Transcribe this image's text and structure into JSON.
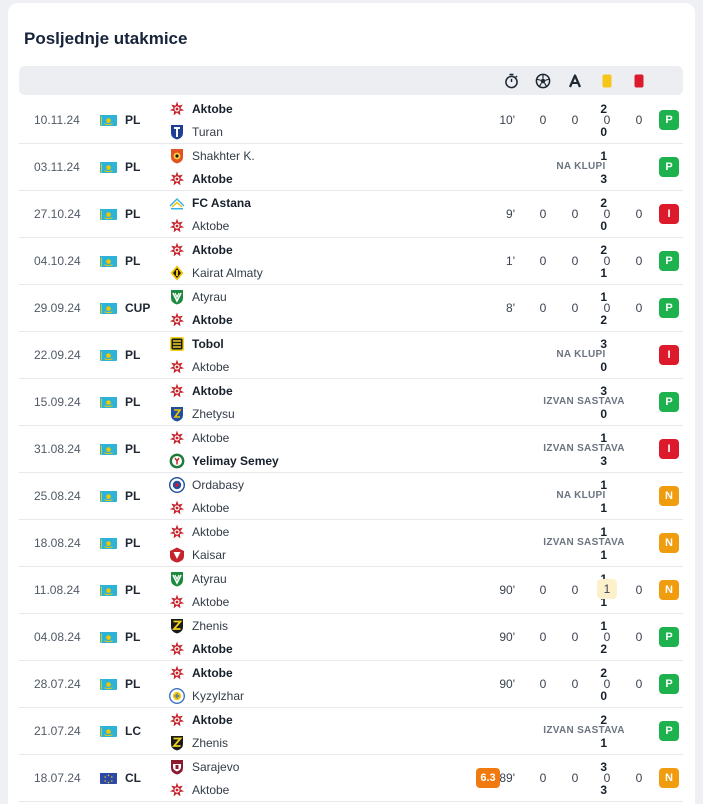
{
  "title": "Posljednje utakmice",
  "header_icons": [
    "stopwatch-icon",
    "soccer-ball-icon",
    "assist-icon",
    "yellow-card-icon",
    "red-card-icon"
  ],
  "colors": {
    "win": "#1db24d",
    "loss": "#dd1a2b",
    "draw": "#f09c0f",
    "rating": "#f07a0f",
    "yellow_card": "#f5c518",
    "red_card": "#dd1a2b"
  },
  "matches": [
    {
      "date": "10.11.24",
      "competition": "PL",
      "flag": "kazakhstan",
      "home": "Aktobe",
      "away": "Turan",
      "home_score": "2",
      "away_score": "0",
      "winner": "home",
      "minutes": "10'",
      "goals": "0",
      "assists": "0",
      "yellow": "0",
      "red": "0",
      "note": "",
      "rating": "",
      "result": "P"
    },
    {
      "date": "03.11.24",
      "competition": "PL",
      "flag": "kazakhstan",
      "home": "Shakhter K.",
      "away": "Aktobe",
      "home_score": "1",
      "away_score": "3",
      "winner": "away",
      "minutes": "",
      "goals": "",
      "assists": "",
      "yellow": "",
      "red": "",
      "note": "NA KLUPI",
      "rating": "",
      "result": "P"
    },
    {
      "date": "27.10.24",
      "competition": "PL",
      "flag": "kazakhstan",
      "home": "FC Astana",
      "away": "Aktobe",
      "home_score": "2",
      "away_score": "0",
      "winner": "home",
      "minutes": "9'",
      "goals": "0",
      "assists": "0",
      "yellow": "0",
      "red": "0",
      "note": "",
      "rating": "",
      "result": "I"
    },
    {
      "date": "04.10.24",
      "competition": "PL",
      "flag": "kazakhstan",
      "home": "Aktobe",
      "away": "Kairat Almaty",
      "home_score": "2",
      "away_score": "1",
      "winner": "home",
      "minutes": "1'",
      "goals": "0",
      "assists": "0",
      "yellow": "0",
      "red": "0",
      "note": "",
      "rating": "",
      "result": "P"
    },
    {
      "date": "29.09.24",
      "competition": "CUP",
      "flag": "kazakhstan",
      "home": "Atyrau",
      "away": "Aktobe",
      "home_score": "1",
      "away_score": "2",
      "winner": "away",
      "minutes": "8'",
      "goals": "0",
      "assists": "0",
      "yellow": "0",
      "red": "0",
      "note": "",
      "rating": "",
      "result": "P"
    },
    {
      "date": "22.09.24",
      "competition": "PL",
      "flag": "kazakhstan",
      "home": "Tobol",
      "away": "Aktobe",
      "home_score": "3",
      "away_score": "0",
      "winner": "home",
      "minutes": "",
      "goals": "",
      "assists": "",
      "yellow": "",
      "red": "",
      "note": "NA KLUPI",
      "rating": "",
      "result": "I"
    },
    {
      "date": "15.09.24",
      "competition": "PL",
      "flag": "kazakhstan",
      "home": "Aktobe",
      "away": "Zhetysu",
      "home_score": "3",
      "away_score": "0",
      "winner": "home",
      "minutes": "",
      "goals": "",
      "assists": "",
      "yellow": "",
      "red": "",
      "note": "IZVAN SASTAVA",
      "rating": "",
      "result": "P"
    },
    {
      "date": "31.08.24",
      "competition": "PL",
      "flag": "kazakhstan",
      "home": "Aktobe",
      "away": "Yelimay Semey",
      "home_score": "1",
      "away_score": "3",
      "winner": "away",
      "minutes": "",
      "goals": "",
      "assists": "",
      "yellow": "",
      "red": "",
      "note": "IZVAN SASTAVA",
      "rating": "",
      "result": "I"
    },
    {
      "date": "25.08.24",
      "competition": "PL",
      "flag": "kazakhstan",
      "home": "Ordabasy",
      "away": "Aktobe",
      "home_score": "1",
      "away_score": "1",
      "winner": "none",
      "minutes": "",
      "goals": "",
      "assists": "",
      "yellow": "",
      "red": "",
      "note": "NA KLUPI",
      "rating": "",
      "result": "N"
    },
    {
      "date": "18.08.24",
      "competition": "PL",
      "flag": "kazakhstan",
      "home": "Aktobe",
      "away": "Kaisar",
      "home_score": "1",
      "away_score": "1",
      "winner": "none",
      "minutes": "",
      "goals": "",
      "assists": "",
      "yellow": "",
      "red": "",
      "note": "IZVAN SASTAVA",
      "rating": "",
      "result": "N"
    },
    {
      "date": "11.08.24",
      "competition": "PL",
      "flag": "kazakhstan",
      "home": "Atyrau",
      "away": "Aktobe",
      "home_score": "1",
      "away_score": "1",
      "winner": "none",
      "minutes": "90'",
      "goals": "0",
      "assists": "0",
      "yellow": "1",
      "red": "0",
      "note": "",
      "rating": "",
      "result": "N"
    },
    {
      "date": "04.08.24",
      "competition": "PL",
      "flag": "kazakhstan",
      "home": "Zhenis",
      "away": "Aktobe",
      "home_score": "1",
      "away_score": "2",
      "winner": "away",
      "minutes": "90'",
      "goals": "0",
      "assists": "0",
      "yellow": "0",
      "red": "0",
      "note": "",
      "rating": "",
      "result": "P"
    },
    {
      "date": "28.07.24",
      "competition": "PL",
      "flag": "kazakhstan",
      "home": "Aktobe",
      "away": "Kyzylzhar",
      "home_score": "2",
      "away_score": "0",
      "winner": "home",
      "minutes": "90'",
      "goals": "0",
      "assists": "0",
      "yellow": "0",
      "red": "0",
      "note": "",
      "rating": "",
      "result": "P"
    },
    {
      "date": "21.07.24",
      "competition": "LC",
      "flag": "kazakhstan",
      "home": "Aktobe",
      "away": "Zhenis",
      "home_score": "2",
      "away_score": "1",
      "winner": "home",
      "minutes": "",
      "goals": "",
      "assists": "",
      "yellow": "",
      "red": "",
      "note": "IZVAN SASTAVA",
      "rating": "",
      "result": "P"
    },
    {
      "date": "18.07.24",
      "competition": "CL",
      "flag": "europe",
      "home": "Sarajevo",
      "away": "Aktobe",
      "home_score": "3",
      "away_score": "3",
      "winner": "none",
      "minutes": "89'",
      "goals": "0",
      "assists": "0",
      "yellow": "0",
      "red": "0",
      "note": "",
      "rating": "6.3",
      "result": "N"
    }
  ]
}
